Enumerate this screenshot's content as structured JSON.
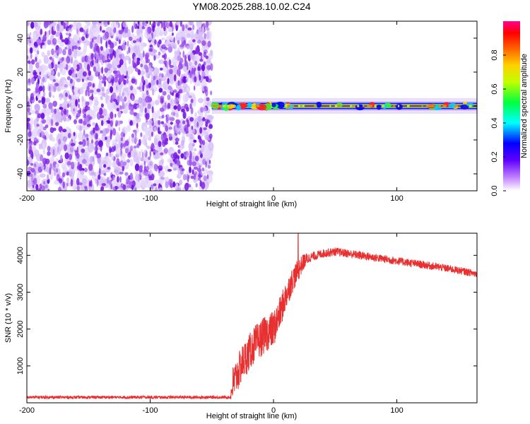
{
  "title": "YM08.2025.288.10.02.C24",
  "chart_data": [
    {
      "type": "heatmap",
      "name": "spectrogram",
      "xlabel": "Height of straight line (km)",
      "ylabel": "Frequency (Hz)",
      "xlim": [
        -200,
        165
      ],
      "ylim": [
        -50,
        50
      ],
      "xticks": [
        -200,
        -100,
        0,
        100
      ],
      "yticks": [
        -40,
        -20,
        0,
        20,
        40
      ],
      "xtick_labels": [
        "-200",
        "-100",
        "0",
        "100"
      ],
      "ytick_labels": [
        "-40",
        "-20",
        "0",
        "20",
        "40"
      ],
      "noise_region_km": [
        -200,
        -50
      ],
      "signal_band_hz": [
        -2,
        2
      ],
      "signal_start_km": -50,
      "colorbar": {
        "label": "Normalized spectral amplitude",
        "range": [
          0,
          1
        ],
        "ticks": [
          0.0,
          0.2,
          0.4,
          0.6,
          0.8
        ],
        "tick_labels": [
          "0.0",
          "0.2",
          "0.4",
          "0.6",
          "0.8"
        ],
        "colormap": [
          "#ffffff",
          "#8000ff",
          "#0000ff",
          "#00ffff",
          "#00ff00",
          "#ffff00",
          "#ff8000",
          "#ff0000",
          "#ff0080"
        ]
      }
    },
    {
      "type": "line",
      "name": "snr",
      "xlabel": "Height of straight line (km)",
      "ylabel": "SNR (10 * v/v)",
      "xlim": [
        -200,
        165
      ],
      "ylim": [
        0,
        4600
      ],
      "xticks": [
        -200,
        -100,
        0,
        100
      ],
      "yticks": [
        1000,
        2000,
        3000,
        4000
      ],
      "xtick_labels": [
        "-200",
        "-100",
        "0",
        "100"
      ],
      "ytick_labels": [
        "1000",
        "2000",
        "3000",
        "4000"
      ],
      "color": "#e83030",
      "envelope": {
        "x": [
          -200,
          -35,
          -33,
          -25,
          -15,
          -5,
          0,
          5,
          10,
          15,
          20,
          25,
          30,
          40,
          50,
          60,
          80,
          100,
          120,
          140,
          165
        ],
        "y": [
          150,
          150,
          500,
          1100,
          1600,
          1900,
          2000,
          2400,
          2900,
          3300,
          3600,
          3850,
          3950,
          4050,
          4100,
          4050,
          3950,
          3850,
          3750,
          3650,
          3500
        ]
      },
      "noise_amplitude": {
        "x": [
          -200,
          -35,
          -33,
          0,
          20,
          30,
          165
        ],
        "y": [
          40,
          40,
          500,
          500,
          300,
          120,
          100
        ]
      },
      "peak": {
        "x": 20,
        "y": 4600
      }
    }
  ]
}
